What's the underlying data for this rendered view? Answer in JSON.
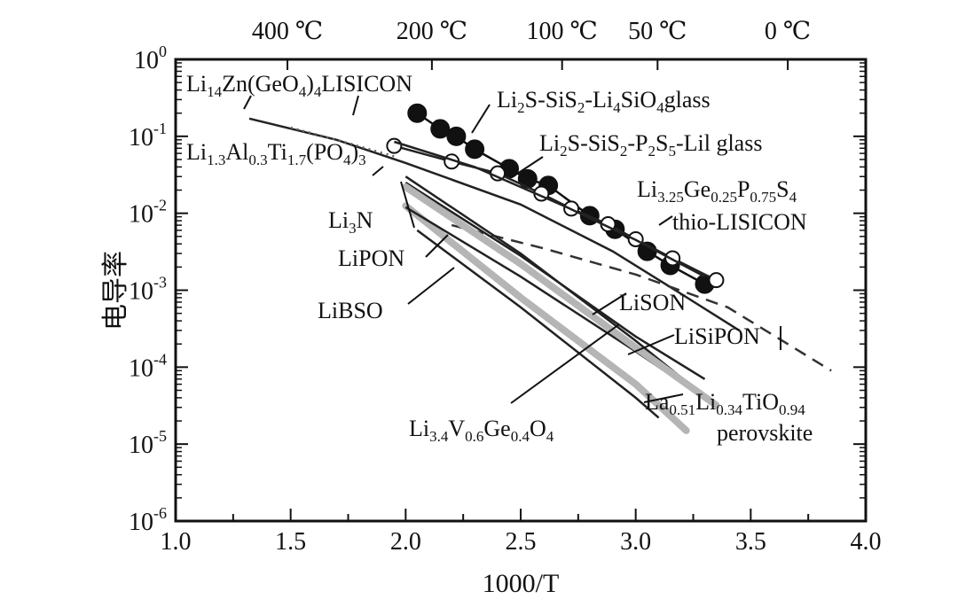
{
  "chart_data": {
    "type": "line",
    "title": "",
    "xlabel": "1000/T",
    "ylabel": "电导率",
    "xlim": [
      1.0,
      4.0
    ],
    "ylim_log10": [
      -6,
      0
    ],
    "yscale": "log",
    "grid": false,
    "x_ticks": [
      1.0,
      1.5,
      2.0,
      2.5,
      3.0,
      3.5,
      4.0
    ],
    "x_tick_labels": [
      "1.0",
      "1.5",
      "2.0",
      "2.5",
      "3.0",
      "3.5",
      "4.0"
    ],
    "y_ticks_log10": [
      0,
      -1,
      -2,
      -3,
      -4,
      -5,
      -6
    ],
    "y_tick_base": "10",
    "y_tick_exponents": [
      "0",
      "-1",
      "-2",
      "-3",
      "-4",
      "-5",
      "-6"
    ],
    "top_axis": {
      "labels": [
        "400 ℃",
        "200 ℃",
        "100 ℃",
        "50 ℃",
        "0 ℃"
      ],
      "positions_x": [
        1.486,
        2.114,
        2.68,
        3.095,
        3.661
      ]
    },
    "series": [
      {
        "material": "Li2S-SiS2-Li4SiO4glass",
        "style": "solid-filled-markers",
        "x": [
          2.05,
          2.15,
          2.22,
          2.3,
          2.45,
          2.53,
          2.62,
          2.8,
          2.91,
          3.05,
          3.15,
          3.3
        ],
        "y": [
          0.2,
          0.125,
          0.1,
          0.068,
          0.038,
          0.028,
          0.023,
          0.0093,
          0.0062,
          0.0032,
          0.0021,
          0.0012
        ]
      },
      {
        "material": "Li2S-SiS2-P2S5-LiI glass",
        "style": "solid-open-markers",
        "x": [
          1.95,
          2.2,
          2.4,
          2.59,
          2.72,
          2.88,
          3.0,
          3.16,
          3.35
        ],
        "y": [
          0.075,
          0.047,
          0.033,
          0.018,
          0.0115,
          0.0072,
          0.0046,
          0.0026,
          0.00135
        ]
      },
      {
        "material": "Li14Zn(GeO4)4 LISICON",
        "style": "solid",
        "x": [
          1.32,
          1.7,
          2.0,
          2.5,
          2.9,
          3.15,
          3.45
        ],
        "y": [
          0.17,
          0.09,
          0.045,
          0.013,
          0.0032,
          0.0011,
          0.0003
        ]
      },
      {
        "material": "Li1.3Al0.3Ti1.7(PO4)3",
        "style": "dotted",
        "x": [
          1.5,
          1.7,
          1.95
        ],
        "y": [
          0.13,
          0.09,
          0.055
        ]
      },
      {
        "material": "Li3.25Ge0.25P0.75S4 thio-LISICON",
        "style": "solid",
        "x": [
          1.95,
          2.3,
          2.7,
          3.0,
          3.3
        ],
        "y": [
          0.085,
          0.04,
          0.012,
          0.0045,
          0.0015
        ]
      },
      {
        "material": "La0.51Li0.34TiO0.94 perovskite",
        "style": "dashed",
        "x": [
          2.2,
          2.6,
          3.0,
          3.4,
          3.85
        ],
        "y": [
          0.007,
          0.0035,
          0.0016,
          0.0006,
          9e-05
        ]
      },
      {
        "material": "Li3N",
        "style": "solid",
        "x": [
          2.0,
          2.5,
          3.0,
          3.25
        ],
        "y": [
          0.03,
          0.003,
          0.00022,
          5.5e-05
        ]
      },
      {
        "material": "LiPON",
        "style": "gray-thick",
        "x": [
          2.0,
          2.5,
          3.0,
          3.22
        ],
        "y": [
          0.0125,
          0.0008,
          6e-05,
          1.5e-05
        ]
      },
      {
        "material": "LiBSO",
        "style": "solid",
        "x": [
          2.05,
          2.5,
          3.0,
          3.1
        ],
        "y": [
          0.006,
          0.0006,
          4e-05,
          2.2e-05
        ]
      },
      {
        "material": "LiSON",
        "style": "solid",
        "x": [
          2.0,
          2.5,
          3.0,
          3.3
        ],
        "y": [
          0.025,
          0.0028,
          0.00025,
          7e-05
        ]
      },
      {
        "material": "LiSiPON",
        "style": "solid",
        "x": [
          2.0,
          2.5,
          3.0,
          3.25
        ],
        "y": [
          0.012,
          0.0015,
          0.00016,
          5e-05
        ]
      },
      {
        "material": "Li3.4V0.6Ge0.4O4",
        "style": "gray-thick",
        "x": [
          2.0,
          2.5,
          3.0,
          3.35
        ],
        "y": [
          0.022,
          0.0022,
          0.00018,
          3.2e-05
        ]
      }
    ],
    "labels": {
      "lisicon": {
        "base": "Li",
        "s1": "14",
        "mid": "Zn(GeO",
        "s2": "4",
        "mid2": ")",
        "s3": "4",
        "tail": "LISICON"
      },
      "li4sio4": {
        "p1": "Li",
        "s1": "2",
        "p2": "S-SiS",
        "s2": "2",
        "p3": "-Li",
        "s3": "4",
        "p4": "SiO",
        "s4": "4",
        "p5": "glass"
      },
      "latp": {
        "p1": "Li",
        "s1": "1.3",
        "p2": "Al",
        "s2": "0.3",
        "p3": "Ti",
        "s3": "1.7",
        "p4": "(PO",
        "s4": "4",
        "p5": ")",
        "s5": "3"
      },
      "lii": {
        "p1": "Li",
        "s1": "2",
        "p2": "S-SiS",
        "s2": "2",
        "p3": "-P",
        "s3": "2",
        "p4": "S",
        "s4": "5",
        "p5": "-Lil glass"
      },
      "thio": {
        "p1": "Li",
        "s1": "3.25",
        "p2": "Ge",
        "s2": "0.25",
        "p3": "P",
        "s3": "0.75",
        "p4": "S",
        "s4": "4",
        "line2": "thio-LISICON"
      },
      "li3n": {
        "p1": "Li",
        "s1": "3",
        "p2": "N"
      },
      "lipon": "LiPON",
      "libso": "LiBSO",
      "lison": "LiSON",
      "lisipon": "LiSiPON",
      "lvgo": {
        "p1": "Li",
        "s1": "3.4",
        "p2": "V",
        "s2": "0.6",
        "p3": "Ge",
        "s3": "0.4",
        "p4": "O",
        "s4": "4"
      },
      "llto": {
        "p1": "La",
        "s1": "0.51",
        "p2": "Li",
        "s2": "0.34",
        "p3": "TiO",
        "s3": "0.94",
        "line2": "perovskite"
      }
    }
  }
}
